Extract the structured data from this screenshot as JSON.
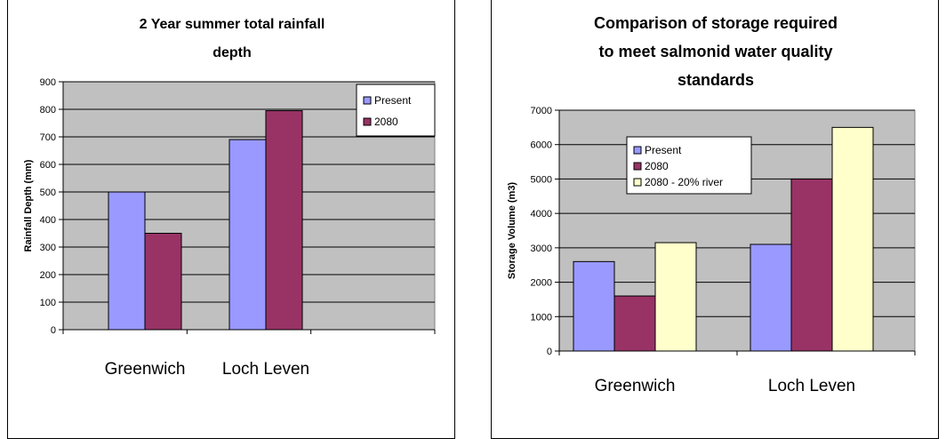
{
  "chart_data": [
    {
      "type": "bar",
      "title_lines": [
        "2 Year summer total rainfall",
        "depth"
      ],
      "ylabel": "Rainfall Depth (mm)",
      "categories": [
        "Greenwich",
        "Loch Leven"
      ],
      "series": [
        {
          "name": "Present",
          "color": "#9999ff",
          "values": [
            500,
            690
          ]
        },
        {
          "name": "2080",
          "color": "#993366",
          "values": [
            350,
            795
          ]
        }
      ],
      "ylim": [
        0,
        900
      ],
      "yticks": [
        0,
        100,
        200,
        300,
        400,
        500,
        600,
        700,
        800,
        900
      ],
      "grid": true,
      "legend_position": "top-right"
    },
    {
      "type": "bar",
      "title_lines": [
        "Comparison of storage required",
        "to meet salmonid water quality",
        "standards"
      ],
      "ylabel": "Storage Volume (m3)",
      "categories": [
        "Greenwich",
        "Loch Leven"
      ],
      "series": [
        {
          "name": "Present",
          "color": "#9999ff",
          "values": [
            2600,
            3100
          ]
        },
        {
          "name": "2080",
          "color": "#993366",
          "values": [
            1600,
            5000
          ]
        },
        {
          "name": "2080 - 20% river",
          "color": "#ffffcc",
          "values": [
            3150,
            6500
          ]
        }
      ],
      "ylim": [
        0,
        7000
      ],
      "yticks": [
        0,
        1000,
        2000,
        3000,
        4000,
        5000,
        6000,
        7000
      ],
      "grid": true,
      "legend_position": "top-left"
    }
  ]
}
